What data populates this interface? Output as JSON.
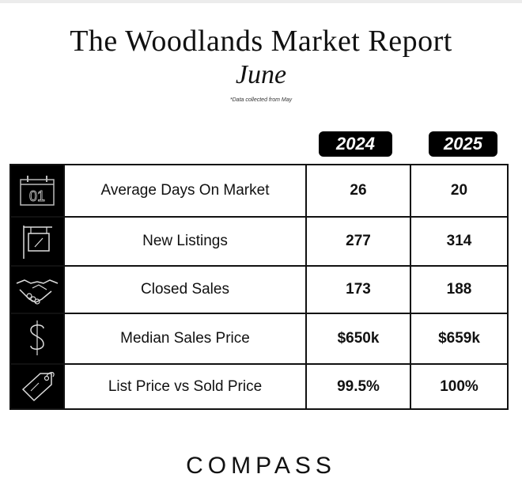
{
  "header": {
    "title": "The Woodlands Market Report",
    "subtitle": "June",
    "note": "*Data collected from May"
  },
  "years": [
    "2024",
    "2025"
  ],
  "rows": [
    {
      "icon": "calendar-icon",
      "label": "Average Days On Market",
      "v2024": "26",
      "v2025": "20"
    },
    {
      "icon": "for-sale-sign-icon",
      "label": "New Listings",
      "v2024": "277",
      "v2025": "314"
    },
    {
      "icon": "handshake-icon",
      "label": "Closed Sales",
      "v2024": "173",
      "v2025": "188"
    },
    {
      "icon": "dollar-sign-icon",
      "label": "Median Sales Price",
      "v2024": "$650k",
      "v2025": "$659k"
    },
    {
      "icon": "price-tag-icon",
      "label": "List Price vs Sold Price",
      "v2024": "99.5%",
      "v2025": "100%"
    }
  ],
  "calendar_number": "01",
  "brand": "COMPASS",
  "colors": {
    "background": "#ffffff",
    "text": "#111111",
    "accent": "#000000"
  }
}
